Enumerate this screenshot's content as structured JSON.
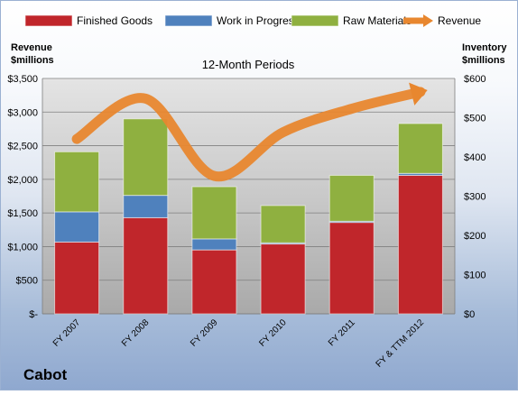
{
  "chart_data": {
    "type": "bar",
    "subtitle": "12-Month Periods",
    "company": "Cabot",
    "left_axis_label": [
      "Revenue",
      "$millions"
    ],
    "right_axis_label": [
      "Inventory",
      "$millions"
    ],
    "categories": [
      "FY 2007",
      "FY 2008",
      "FY 2009",
      "FY 2010",
      "FY 2011",
      "FY & TTM 2012"
    ],
    "left_axis": {
      "min": 0,
      "max": 3500,
      "ticks": [
        "$-",
        "$500",
        "$1,000",
        "$1,500",
        "$2,000",
        "$2,500",
        "$3,000",
        "$3,500"
      ]
    },
    "right_axis": {
      "min": 0,
      "max": 600,
      "ticks": [
        "$0",
        "$100",
        "$200",
        "$300",
        "$400",
        "$500",
        "$600"
      ]
    },
    "series": [
      {
        "name": "Finished Goods",
        "axis": "right",
        "stacked": true,
        "color": "#c0262b",
        "values": [
          183,
          245,
          163,
          178,
          233,
          353
        ]
      },
      {
        "name": "Work in Progress",
        "axis": "right",
        "stacked": true,
        "color": "#4f81bd",
        "values": [
          77,
          57,
          28,
          3,
          3,
          5
        ]
      },
      {
        "name": "Raw Materials",
        "axis": "right",
        "stacked": true,
        "color": "#8fb040",
        "values": [
          153,
          195,
          133,
          95,
          117,
          127
        ]
      },
      {
        "name": "Revenue",
        "axis": "left",
        "type": "line",
        "color": "#e8872f",
        "values": [
          2600,
          3200,
          2050,
          2700,
          3050,
          3300
        ]
      }
    ],
    "legend_position": "top",
    "grid": true
  }
}
